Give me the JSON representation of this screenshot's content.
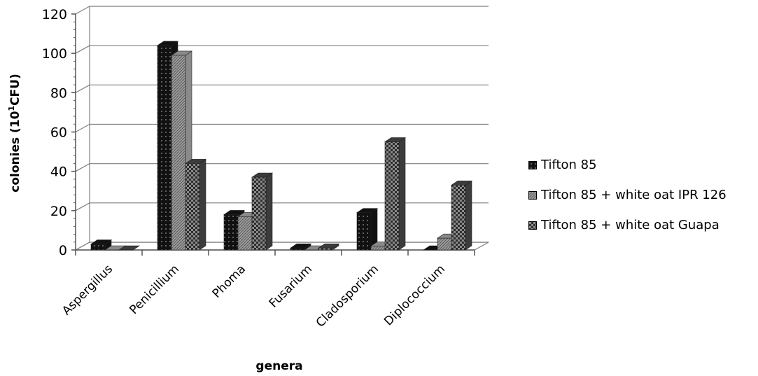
{
  "chart_data": {
    "type": "bar",
    "title": "",
    "xlabel": "genera",
    "ylabel_main": "colonies (10",
    "ylabel_sup": "1",
    "ylabel_tail": "CFU)",
    "ylim": [
      0,
      120
    ],
    "yticks": [
      0,
      20,
      40,
      60,
      80,
      100,
      120
    ],
    "grid": true,
    "legend_position": "right",
    "three_d": true,
    "categories": [
      "Aspergillus",
      "Penicillium",
      "Phoma",
      "Fusarium",
      "Cladosporium",
      "Diplococcium"
    ],
    "series": [
      {
        "name": "Tifton 85",
        "color": "#111111",
        "pattern": "dots",
        "values": [
          3,
          104,
          18,
          1,
          19,
          0
        ]
      },
      {
        "name": "Tifton 85 + white oat IPR 126",
        "color": "#8a8a8a",
        "pattern": "fine-diagonal",
        "values": [
          0,
          99,
          17,
          0,
          2,
          6
        ]
      },
      {
        "name": "Tifton 85 + white oat Guapa",
        "color": "#3c3c3c",
        "pattern": "checker",
        "values": [
          0,
          44,
          37,
          1,
          55,
          33
        ]
      }
    ]
  }
}
